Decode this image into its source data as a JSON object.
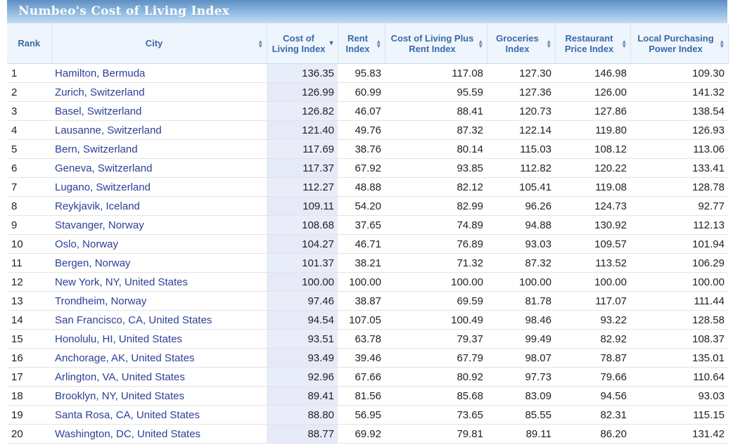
{
  "banner": {
    "title": "Numbeo's Cost of Living Index"
  },
  "table": {
    "columns": [
      "Rank",
      "City",
      "Cost of Living Index",
      "Rent Index",
      "Cost of Living Plus Rent Index",
      "Groceries Index",
      "Restaurant Price Index",
      "Local Purchasing Power Index"
    ],
    "sorted_column": "Cost of Living Index",
    "rows": [
      [
        "1",
        "Hamilton, Bermuda",
        "136.35",
        "95.83",
        "117.08",
        "127.30",
        "146.98",
        "109.30"
      ],
      [
        "2",
        "Zurich, Switzerland",
        "126.99",
        "60.99",
        "95.59",
        "127.36",
        "126.00",
        "141.32"
      ],
      [
        "3",
        "Basel, Switzerland",
        "126.82",
        "46.07",
        "88.41",
        "120.73",
        "127.86",
        "138.54"
      ],
      [
        "4",
        "Lausanne, Switzerland",
        "121.40",
        "49.76",
        "87.32",
        "122.14",
        "119.80",
        "126.93"
      ],
      [
        "5",
        "Bern, Switzerland",
        "117.69",
        "38.76",
        "80.14",
        "115.03",
        "108.12",
        "113.06"
      ],
      [
        "6",
        "Geneva, Switzerland",
        "117.37",
        "67.92",
        "93.85",
        "112.82",
        "120.22",
        "133.41"
      ],
      [
        "7",
        "Lugano, Switzerland",
        "112.27",
        "48.88",
        "82.12",
        "105.41",
        "119.08",
        "128.78"
      ],
      [
        "8",
        "Reykjavik, Iceland",
        "109.11",
        "54.20",
        "82.99",
        "96.26",
        "124.73",
        "92.77"
      ],
      [
        "9",
        "Stavanger, Norway",
        "108.68",
        "37.65",
        "74.89",
        "94.88",
        "130.92",
        "112.13"
      ],
      [
        "10",
        "Oslo, Norway",
        "104.27",
        "46.71",
        "76.89",
        "93.03",
        "109.57",
        "101.94"
      ],
      [
        "11",
        "Bergen, Norway",
        "101.37",
        "38.21",
        "71.32",
        "87.32",
        "113.52",
        "106.29"
      ],
      [
        "12",
        "New York, NY, United States",
        "100.00",
        "100.00",
        "100.00",
        "100.00",
        "100.00",
        "100.00"
      ],
      [
        "13",
        "Trondheim, Norway",
        "97.46",
        "38.87",
        "69.59",
        "81.78",
        "117.07",
        "111.44"
      ],
      [
        "14",
        "San Francisco, CA, United States",
        "94.54",
        "107.05",
        "100.49",
        "98.46",
        "93.22",
        "128.58"
      ],
      [
        "15",
        "Honolulu, HI, United States",
        "93.51",
        "63.78",
        "79.37",
        "99.49",
        "82.92",
        "108.37"
      ],
      [
        "16",
        "Anchorage, AK, United States",
        "93.49",
        "39.46",
        "67.79",
        "98.07",
        "78.87",
        "135.01"
      ],
      [
        "17",
        "Arlington, VA, United States",
        "92.96",
        "67.66",
        "80.92",
        "97.73",
        "79.66",
        "110.64"
      ],
      [
        "18",
        "Brooklyn, NY, United States",
        "89.41",
        "81.56",
        "85.68",
        "83.09",
        "94.56",
        "93.03"
      ],
      [
        "19",
        "Santa Rosa, CA, United States",
        "88.80",
        "56.95",
        "73.65",
        "85.55",
        "82.31",
        "115.15"
      ],
      [
        "20",
        "Washington, DC, United States",
        "88.77",
        "69.92",
        "79.81",
        "89.11",
        "86.20",
        "131.42"
      ]
    ]
  },
  "colors": {
    "header_text": "#3a69a8",
    "header_bg": "#eef5fc",
    "link": "#2d3f96",
    "sorted_column_bg": "#e9edfa",
    "banner": "#6e9dd0"
  },
  "icons": {
    "sortable": "sort-updown-icon",
    "sorted_desc": "sort-descending-icon"
  }
}
